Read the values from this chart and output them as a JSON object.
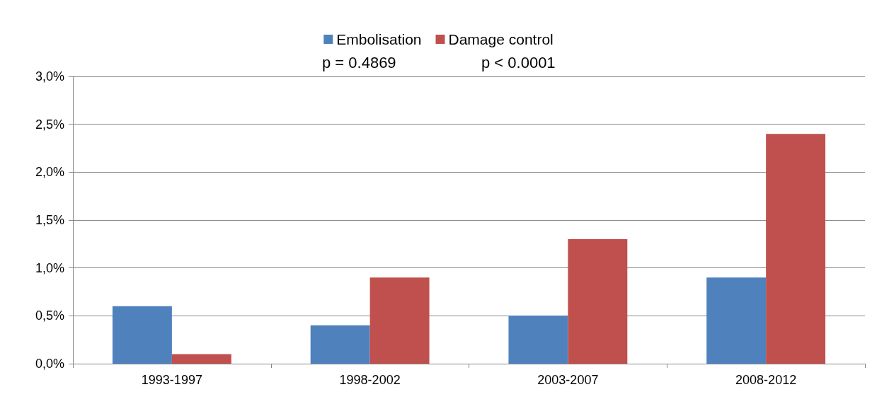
{
  "chart_data": {
    "type": "bar",
    "categories": [
      "1993-1997",
      "1998-2002",
      "2003-2007",
      "2008-2012"
    ],
    "series": [
      {
        "name": "Embolisation",
        "color": "#4f81bd",
        "values": [
          0.6,
          0.4,
          0.5,
          0.9
        ]
      },
      {
        "name": "Damage control",
        "color": "#c0504d",
        "values": [
          0.1,
          0.9,
          1.3,
          2.4
        ]
      }
    ],
    "ylim": [
      0,
      3
    ],
    "yticks": [
      {
        "value": 0,
        "label": "0,0%"
      },
      {
        "value": 0.5,
        "label": "0,5%"
      },
      {
        "value": 1,
        "label": "1,0%"
      },
      {
        "value": 1.5,
        "label": "1,5%"
      },
      {
        "value": 2,
        "label": "2,0%"
      },
      {
        "value": 2.5,
        "label": "2,5%"
      },
      {
        "value": 3,
        "label": "3,0%"
      }
    ],
    "annotations": [
      "p = 0.4869",
      "p < 0.0001"
    ],
    "grid": "y",
    "legend": "top"
  }
}
